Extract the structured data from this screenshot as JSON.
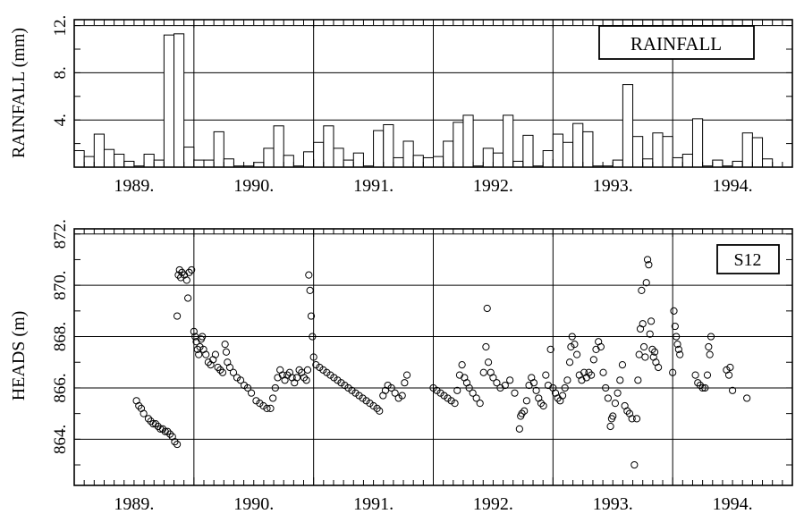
{
  "chart_data": [
    {
      "type": "bar",
      "title": "RAINFALL",
      "ylabel": "RAINFALL (mm)",
      "xlabel": "",
      "ylim": [
        0,
        12.5
      ],
      "yticks": [
        "4.",
        "8.",
        "12."
      ],
      "year_labels": [
        "1989.",
        "1990.",
        "1991.",
        "1992.",
        "1993.",
        "1994."
      ],
      "x_unit": "month",
      "x_start": "1989-01",
      "grid": true,
      "legend": "none",
      "values": [
        1.4,
        0.9,
        2.8,
        1.5,
        1.1,
        0.5,
        0.1,
        1.1,
        0.6,
        11.2,
        11.3,
        1.7,
        0.6,
        0.6,
        3.0,
        0.7,
        0.1,
        0.1,
        0.4,
        1.6,
        3.5,
        1.0,
        0.1,
        1.3,
        2.1,
        3.5,
        1.6,
        0.6,
        1.2,
        0.1,
        3.1,
        3.6,
        0.8,
        2.2,
        1.0,
        0.8,
        0.9,
        2.2,
        3.8,
        4.4,
        0.1,
        1.6,
        1.2,
        4.4,
        0.5,
        2.7,
        0.1,
        1.4,
        2.8,
        2.1,
        3.7,
        3.0,
        0.1,
        0.1,
        0.6,
        7.0,
        2.6,
        0.7,
        2.9,
        2.6,
        0.8,
        1.1,
        4.1,
        0.1,
        0.6,
        0.1,
        0.5,
        2.9,
        2.5,
        0.7
      ]
    },
    {
      "type": "scatter",
      "title": "S12",
      "ylabel": "HEADS (m)",
      "xlabel": "",
      "ylim": [
        862.2,
        872.2
      ],
      "yticks": [
        "864.",
        "866.",
        "868.",
        "870.",
        "872."
      ],
      "year_labels": [
        "1989.",
        "1990.",
        "1991.",
        "1992.",
        "1993.",
        "1994."
      ],
      "x_unit": "decimal year",
      "grid": true,
      "legend": "none",
      "points": [
        [
          1989.52,
          865.5
        ],
        [
          1989.54,
          865.3
        ],
        [
          1989.56,
          865.2
        ],
        [
          1989.58,
          865.0
        ],
        [
          1989.62,
          864.8
        ],
        [
          1989.64,
          864.7
        ],
        [
          1989.66,
          864.6
        ],
        [
          1989.68,
          864.6
        ],
        [
          1989.7,
          864.5
        ],
        [
          1989.72,
          864.4
        ],
        [
          1989.74,
          864.4
        ],
        [
          1989.76,
          864.3
        ],
        [
          1989.78,
          864.3
        ],
        [
          1989.8,
          864.2
        ],
        [
          1989.82,
          864.1
        ],
        [
          1989.84,
          863.9
        ],
        [
          1989.86,
          863.8
        ],
        [
          1989.86,
          868.8
        ],
        [
          1989.87,
          870.4
        ],
        [
          1989.88,
          870.6
        ],
        [
          1989.89,
          870.3
        ],
        [
          1989.9,
          870.5
        ],
        [
          1989.92,
          870.4
        ],
        [
          1989.94,
          870.2
        ],
        [
          1989.95,
          869.5
        ],
        [
          1989.96,
          870.5
        ],
        [
          1989.98,
          870.6
        ],
        [
          1990.0,
          868.2
        ],
        [
          1990.01,
          868.0
        ],
        [
          1990.02,
          867.8
        ],
        [
          1990.03,
          867.5
        ],
        [
          1990.04,
          867.3
        ],
        [
          1990.05,
          867.6
        ],
        [
          1990.06,
          867.9
        ],
        [
          1990.07,
          868.0
        ],
        [
          1990.08,
          867.5
        ],
        [
          1990.1,
          867.3
        ],
        [
          1990.12,
          867.0
        ],
        [
          1990.14,
          866.9
        ],
        [
          1990.16,
          867.1
        ],
        [
          1990.18,
          867.3
        ],
        [
          1990.2,
          866.8
        ],
        [
          1990.22,
          866.7
        ],
        [
          1990.24,
          866.6
        ],
        [
          1990.26,
          867.7
        ],
        [
          1990.27,
          867.4
        ],
        [
          1990.28,
          867.0
        ],
        [
          1990.3,
          866.8
        ],
        [
          1990.33,
          866.6
        ],
        [
          1990.36,
          866.4
        ],
        [
          1990.39,
          866.3
        ],
        [
          1990.42,
          866.1
        ],
        [
          1990.45,
          866.0
        ],
        [
          1990.48,
          865.8
        ],
        [
          1990.52,
          865.5
        ],
        [
          1990.55,
          865.4
        ],
        [
          1990.58,
          865.3
        ],
        [
          1990.61,
          865.2
        ],
        [
          1990.64,
          865.2
        ],
        [
          1990.66,
          865.6
        ],
        [
          1990.68,
          866.0
        ],
        [
          1990.7,
          866.4
        ],
        [
          1990.72,
          866.7
        ],
        [
          1990.74,
          866.5
        ],
        [
          1990.76,
          866.3
        ],
        [
          1990.78,
          866.5
        ],
        [
          1990.8,
          866.6
        ],
        [
          1990.82,
          866.4
        ],
        [
          1990.84,
          866.2
        ],
        [
          1990.86,
          866.4
        ],
        [
          1990.88,
          866.7
        ],
        [
          1990.9,
          866.6
        ],
        [
          1990.92,
          866.4
        ],
        [
          1990.94,
          866.3
        ],
        [
          1990.95,
          866.7
        ],
        [
          1990.96,
          870.4
        ],
        [
          1990.97,
          869.8
        ],
        [
          1990.98,
          868.8
        ],
        [
          1990.99,
          868.0
        ],
        [
          1991.0,
          867.2
        ],
        [
          1991.02,
          866.9
        ],
        [
          1991.05,
          866.8
        ],
        [
          1991.08,
          866.7
        ],
        [
          1991.11,
          866.6
        ],
        [
          1991.14,
          866.5
        ],
        [
          1991.17,
          866.4
        ],
        [
          1991.2,
          866.3
        ],
        [
          1991.23,
          866.2
        ],
        [
          1991.26,
          866.1
        ],
        [
          1991.29,
          866.0
        ],
        [
          1991.32,
          865.9
        ],
        [
          1991.35,
          865.8
        ],
        [
          1991.38,
          865.7
        ],
        [
          1991.41,
          865.6
        ],
        [
          1991.44,
          865.5
        ],
        [
          1991.47,
          865.4
        ],
        [
          1991.5,
          865.3
        ],
        [
          1991.53,
          865.2
        ],
        [
          1991.55,
          865.1
        ],
        [
          1991.58,
          865.7
        ],
        [
          1991.6,
          865.9
        ],
        [
          1991.62,
          866.1
        ],
        [
          1991.65,
          866.0
        ],
        [
          1991.68,
          865.8
        ],
        [
          1991.71,
          865.6
        ],
        [
          1991.74,
          865.7
        ],
        [
          1991.76,
          866.2
        ],
        [
          1991.78,
          866.5
        ],
        [
          1992.0,
          866.0
        ],
        [
          1992.03,
          865.9
        ],
        [
          1992.06,
          865.8
        ],
        [
          1992.09,
          865.7
        ],
        [
          1992.12,
          865.6
        ],
        [
          1992.15,
          865.5
        ],
        [
          1992.18,
          865.4
        ],
        [
          1992.2,
          865.9
        ],
        [
          1992.22,
          866.5
        ],
        [
          1992.24,
          866.9
        ],
        [
          1992.26,
          866.4
        ],
        [
          1992.28,
          866.2
        ],
        [
          1992.3,
          866.0
        ],
        [
          1992.33,
          865.8
        ],
        [
          1992.36,
          865.6
        ],
        [
          1992.39,
          865.4
        ],
        [
          1992.42,
          866.6
        ],
        [
          1992.44,
          867.6
        ],
        [
          1992.45,
          869.1
        ],
        [
          1992.46,
          867.0
        ],
        [
          1992.48,
          866.6
        ],
        [
          1992.5,
          866.4
        ],
        [
          1992.53,
          866.2
        ],
        [
          1992.56,
          866.0
        ],
        [
          1992.6,
          866.1
        ],
        [
          1992.64,
          866.3
        ],
        [
          1992.68,
          865.8
        ],
        [
          1992.72,
          864.4
        ],
        [
          1992.73,
          864.9
        ],
        [
          1992.74,
          865.0
        ],
        [
          1992.76,
          865.1
        ],
        [
          1992.78,
          865.5
        ],
        [
          1992.8,
          866.1
        ],
        [
          1992.82,
          866.4
        ],
        [
          1992.84,
          866.2
        ],
        [
          1992.86,
          865.9
        ],
        [
          1992.88,
          865.6
        ],
        [
          1992.9,
          865.4
        ],
        [
          1992.92,
          865.3
        ],
        [
          1992.94,
          866.5
        ],
        [
          1992.96,
          866.1
        ],
        [
          1992.98,
          867.5
        ],
        [
          1993.0,
          866.0
        ],
        [
          1993.02,
          865.8
        ],
        [
          1993.04,
          865.6
        ],
        [
          1993.06,
          865.5
        ],
        [
          1993.08,
          865.7
        ],
        [
          1993.1,
          866.0
        ],
        [
          1993.12,
          866.3
        ],
        [
          1993.14,
          867.0
        ],
        [
          1993.15,
          867.6
        ],
        [
          1993.16,
          868.0
        ],
        [
          1993.18,
          867.7
        ],
        [
          1993.2,
          867.3
        ],
        [
          1993.22,
          866.5
        ],
        [
          1993.24,
          866.3
        ],
        [
          1993.26,
          866.6
        ],
        [
          1993.28,
          866.4
        ],
        [
          1993.3,
          866.6
        ],
        [
          1993.32,
          866.5
        ],
        [
          1993.34,
          867.1
        ],
        [
          1993.36,
          867.5
        ],
        [
          1993.38,
          867.8
        ],
        [
          1993.4,
          867.6
        ],
        [
          1993.42,
          866.6
        ],
        [
          1993.44,
          866.0
        ],
        [
          1993.46,
          865.6
        ],
        [
          1993.48,
          864.5
        ],
        [
          1993.49,
          864.8
        ],
        [
          1993.5,
          864.9
        ],
        [
          1993.52,
          865.4
        ],
        [
          1993.54,
          865.8
        ],
        [
          1993.56,
          866.3
        ],
        [
          1993.58,
          866.9
        ],
        [
          1993.6,
          865.3
        ],
        [
          1993.62,
          865.1
        ],
        [
          1993.64,
          865.0
        ],
        [
          1993.66,
          864.8
        ],
        [
          1993.68,
          863.0
        ],
        [
          1993.7,
          864.8
        ],
        [
          1993.71,
          866.3
        ],
        [
          1993.72,
          867.3
        ],
        [
          1993.73,
          868.3
        ],
        [
          1993.74,
          869.8
        ],
        [
          1993.75,
          868.5
        ],
        [
          1993.76,
          867.6
        ],
        [
          1993.77,
          867.2
        ],
        [
          1993.78,
          870.1
        ],
        [
          1993.79,
          871.0
        ],
        [
          1993.8,
          870.8
        ],
        [
          1993.81,
          868.1
        ],
        [
          1993.82,
          868.6
        ],
        [
          1993.83,
          867.5
        ],
        [
          1993.84,
          867.2
        ],
        [
          1993.85,
          867.4
        ],
        [
          1993.86,
          867.0
        ],
        [
          1993.88,
          866.8
        ],
        [
          1994.0,
          866.6
        ],
        [
          1994.01,
          869.0
        ],
        [
          1994.02,
          868.4
        ],
        [
          1994.03,
          868.0
        ],
        [
          1994.04,
          867.7
        ],
        [
          1994.05,
          867.5
        ],
        [
          1994.06,
          867.3
        ],
        [
          1994.19,
          866.5
        ],
        [
          1994.21,
          866.2
        ],
        [
          1994.23,
          866.1
        ],
        [
          1994.25,
          866.0
        ],
        [
          1994.27,
          866.0
        ],
        [
          1994.29,
          866.5
        ],
        [
          1994.3,
          867.6
        ],
        [
          1994.31,
          867.3
        ],
        [
          1994.32,
          868.0
        ],
        [
          1994.45,
          866.7
        ],
        [
          1994.47,
          866.5
        ],
        [
          1994.48,
          866.8
        ],
        [
          1994.5,
          865.9
        ],
        [
          1994.62,
          865.6
        ]
      ]
    }
  ]
}
